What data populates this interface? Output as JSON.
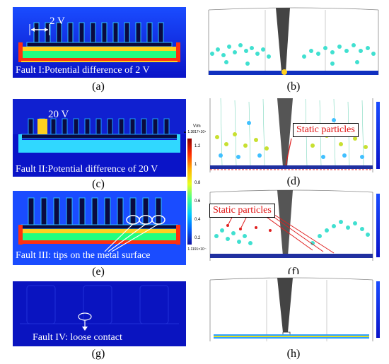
{
  "panels": {
    "a": {
      "letter": "(a)",
      "caption": "Fault I:Potential difference of 2 V",
      "annotation": "2 V"
    },
    "b": {
      "letter": "(b)"
    },
    "c": {
      "letter": "(c)",
      "caption": "Fault II:Potential difference of 20 V",
      "annotation": "20 V"
    },
    "d": {
      "letter": "(d)",
      "static_label": "Static particles"
    },
    "e": {
      "letter": "(e)",
      "caption": "Fault III: tips on the metal surface"
    },
    "f": {
      "letter": "(f)",
      "static_label": "Static particles"
    },
    "g": {
      "letter": "(g)",
      "caption": "Fault IV: loose contact"
    },
    "h": {
      "letter": "(h)"
    }
  },
  "colorbar": {
    "unit": "V/m",
    "max_label": "▲ 1.3817×10⁴",
    "min_label": "▼ 1.1191×10⁻¹³",
    "ticks": [
      "1.2",
      "1",
      "0.8",
      "0.6",
      "0.4",
      "0.2"
    ],
    "colors": [
      "#8b0000",
      "#ff2a00",
      "#ffb000",
      "#e8ff20",
      "#40ff90",
      "#00c8ff",
      "#0060ff",
      "#1010a0"
    ]
  }
}
